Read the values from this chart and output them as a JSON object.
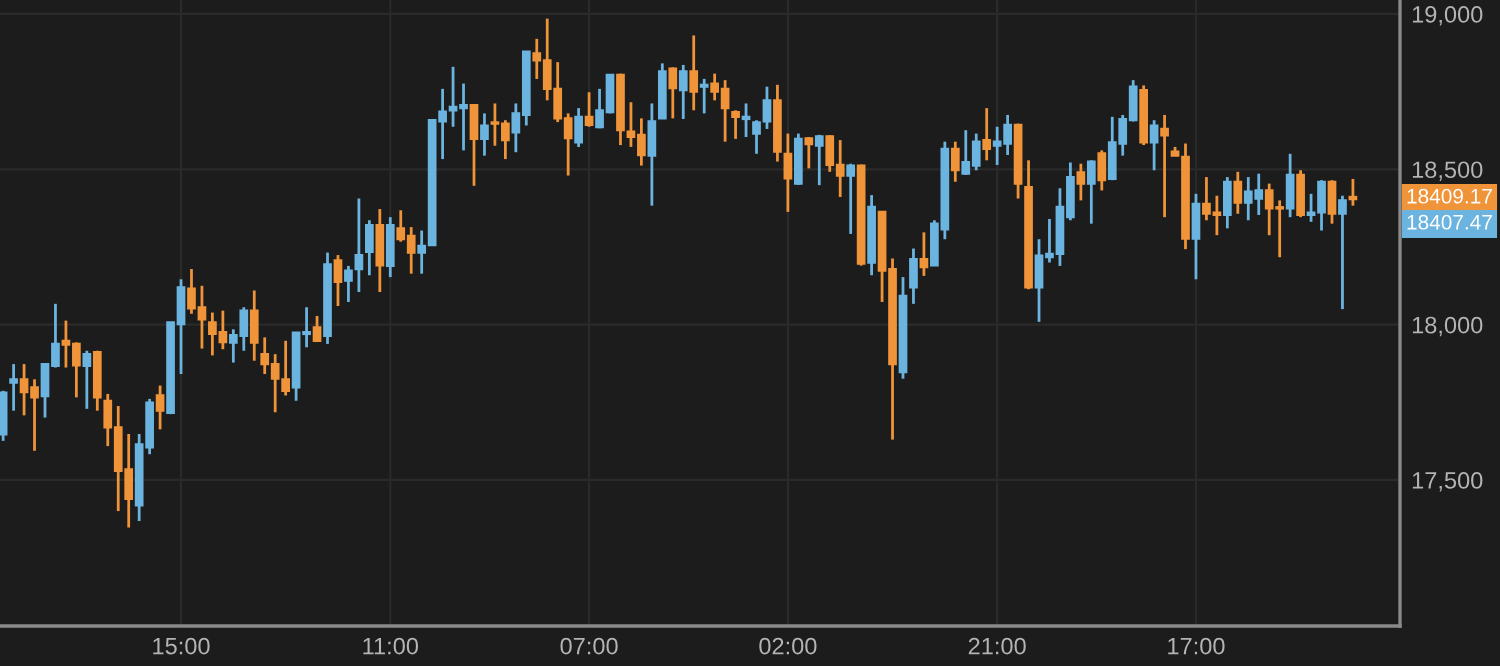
{
  "chart_data": {
    "type": "candlestick",
    "categories": [
      null,
      null,
      null,
      null,
      null,
      null,
      null,
      null,
      null,
      null,
      null,
      null,
      null,
      null,
      null,
      null,
      null,
      "15:00",
      null,
      null,
      null,
      null,
      null,
      null,
      null,
      null,
      null,
      null,
      null,
      null,
      null,
      null,
      null,
      null,
      null,
      null,
      null,
      "11:00",
      null,
      null,
      null,
      null,
      null,
      null,
      null,
      null,
      null,
      null,
      null,
      null,
      null,
      null,
      null,
      null,
      null,
      null,
      "07:00",
      null,
      null,
      null,
      null,
      null,
      null,
      null,
      null,
      null,
      null,
      null,
      null,
      null,
      null,
      null,
      null,
      null,
      null,
      "02:00",
      null,
      null,
      null,
      null,
      null,
      null,
      null,
      null,
      null,
      null,
      null,
      null,
      null,
      null,
      null,
      null,
      null,
      null,
      null,
      "21:00",
      null,
      null,
      null,
      null,
      null,
      null,
      null,
      null,
      null,
      null,
      null,
      null,
      null,
      null,
      null,
      null,
      null,
      null,
      "17:00",
      null,
      null,
      null,
      null,
      null,
      null,
      null,
      null,
      null,
      null,
      null,
      null,
      null,
      null,
      null
    ],
    "ohlc": [
      [
        17647,
        17787,
        17626,
        17781
      ],
      [
        17813,
        17873,
        17723,
        17824
      ],
      [
        17824,
        17873,
        17708,
        17783
      ],
      [
        17798,
        17824,
        17594,
        17766
      ],
      [
        17770,
        17873,
        17701,
        17873
      ],
      [
        17867,
        18067,
        17862,
        17938
      ],
      [
        17948,
        18013,
        17862,
        17936
      ],
      [
        17938,
        17943,
        17766,
        17869
      ],
      [
        17867,
        17916,
        17729,
        17905
      ],
      [
        17912,
        17916,
        17723,
        17766
      ],
      [
        17755,
        17777,
        17609,
        17669
      ],
      [
        17669,
        17738,
        17400,
        17529
      ],
      [
        17534,
        17648,
        17347,
        17439
      ],
      [
        17418,
        17648,
        17368,
        17615
      ],
      [
        17605,
        17761,
        17583,
        17749
      ],
      [
        17772,
        17804,
        17663,
        17723
      ],
      [
        17716,
        18007,
        17712,
        18007
      ],
      [
        18002,
        18146,
        17841,
        18120
      ],
      [
        18116,
        18179,
        18035,
        18052
      ],
      [
        18056,
        18125,
        17923,
        18017
      ],
      [
        18007,
        18039,
        17901,
        17970
      ],
      [
        17976,
        18045,
        17921,
        17944
      ],
      [
        17942,
        17985,
        17878,
        17966
      ],
      [
        17964,
        18056,
        17916,
        18045
      ],
      [
        18045,
        18110,
        17884,
        17942
      ],
      [
        17905,
        17959,
        17841,
        17873
      ],
      [
        17873,
        17905,
        17718,
        17826
      ],
      [
        17824,
        17948,
        17772,
        17787
      ],
      [
        17798,
        17974,
        17755,
        17974
      ],
      [
        17970,
        18056,
        17927,
        17976
      ],
      [
        17991,
        18028,
        17944,
        17948
      ],
      [
        17964,
        18232,
        17938,
        18194
      ],
      [
        18207,
        18224,
        18060,
        18138
      ],
      [
        18142,
        18189,
        18073,
        18174
      ],
      [
        18179,
        18406,
        18105,
        18224
      ],
      [
        18234,
        18336,
        18159,
        18320
      ],
      [
        18320,
        18372,
        18105,
        18191
      ],
      [
        18189,
        18346,
        18153,
        18320
      ],
      [
        18310,
        18368,
        18267,
        18275
      ],
      [
        18286,
        18314,
        18164,
        18232
      ],
      [
        18232,
        18303,
        18164,
        18254
      ],
      [
        18256,
        18658,
        18256,
        18658
      ],
      [
        18654,
        18759,
        18533,
        18686
      ],
      [
        18690,
        18830,
        18637,
        18701
      ],
      [
        18697,
        18776,
        18561,
        18707
      ],
      [
        18707,
        18710,
        18447,
        18598
      ],
      [
        18598,
        18680,
        18544,
        18641
      ],
      [
        18651,
        18712,
        18576,
        18647
      ],
      [
        18647,
        18658,
        18533,
        18594
      ],
      [
        18619,
        18712,
        18555,
        18680
      ],
      [
        18675,
        18879,
        18641,
        18879
      ],
      [
        18873,
        18920,
        18791,
        18851
      ],
      [
        18851,
        18985,
        18722,
        18759
      ],
      [
        18759,
        18845,
        18652,
        18664
      ],
      [
        18664,
        18680,
        18480,
        18600
      ],
      [
        18587,
        18697,
        18572,
        18669
      ],
      [
        18669,
        18748,
        18637,
        18643
      ],
      [
        18636,
        18759,
        18632,
        18690
      ],
      [
        18684,
        18804,
        18680,
        18804
      ],
      [
        18804,
        18808,
        18578,
        18626
      ],
      [
        18621,
        18716,
        18572,
        18604
      ],
      [
        18611,
        18664,
        18512,
        18546
      ],
      [
        18544,
        18712,
        18383,
        18654
      ],
      [
        18664,
        18841,
        18662,
        18815
      ],
      [
        18824,
        18828,
        18664,
        18761
      ],
      [
        18755,
        18836,
        18662,
        18815
      ],
      [
        18815,
        18931,
        18690,
        18750
      ],
      [
        18766,
        18791,
        18680,
        18772
      ],
      [
        18776,
        18808,
        18722,
        18750
      ],
      [
        18759,
        18787,
        18589,
        18697
      ],
      [
        18684,
        18690,
        18598,
        18669
      ],
      [
        18662,
        18712,
        18604,
        18669
      ],
      [
        18615,
        18658,
        18550,
        18651
      ],
      [
        18654,
        18766,
        18630,
        18722
      ],
      [
        18722,
        18772,
        18525,
        18557
      ],
      [
        18550,
        18615,
        18363,
        18471
      ],
      [
        18454,
        18615,
        18450,
        18598
      ],
      [
        18600,
        18604,
        18503,
        18581
      ],
      [
        18576,
        18611,
        18449,
        18606
      ],
      [
        18606,
        18610,
        18492,
        18514
      ],
      [
        18514,
        18594,
        18411,
        18480
      ],
      [
        18480,
        18518,
        18292,
        18512
      ],
      [
        18512,
        18515,
        18190,
        18196
      ],
      [
        18200,
        18417,
        18159,
        18379
      ],
      [
        18363,
        18365,
        18073,
        18174
      ],
      [
        18179,
        18213,
        17630,
        17873
      ],
      [
        17847,
        18153,
        17826,
        18093
      ],
      [
        18120,
        18245,
        18067,
        18211
      ],
      [
        18211,
        18297,
        18157,
        18185
      ],
      [
        18191,
        18336,
        18189,
        18325
      ],
      [
        18307,
        18589,
        18275,
        18566
      ],
      [
        18566,
        18589,
        18460,
        18497
      ],
      [
        18486,
        18626,
        18482,
        18523
      ],
      [
        18512,
        18615,
        18497,
        18589
      ],
      [
        18594,
        18697,
        18529,
        18566
      ],
      [
        18576,
        18637,
        18514,
        18589
      ],
      [
        18583,
        18675,
        18546,
        18643
      ],
      [
        18643,
        18647,
        18406,
        18454
      ],
      [
        18443,
        18529,
        18114,
        18120
      ],
      [
        18120,
        18275,
        18009,
        18222
      ],
      [
        18217,
        18340,
        18200,
        18228
      ],
      [
        18228,
        18439,
        18189,
        18379
      ],
      [
        18346,
        18522,
        18336,
        18475
      ],
      [
        18490,
        18518,
        18400,
        18454
      ],
      [
        18454,
        18529,
        18325,
        18525
      ],
      [
        18551,
        18561,
        18432,
        18465
      ],
      [
        18469,
        18669,
        18465,
        18587
      ],
      [
        18583,
        18675,
        18544,
        18662
      ],
      [
        18658,
        18787,
        18654,
        18766
      ],
      [
        18755,
        18770,
        18578,
        18587
      ],
      [
        18587,
        18658,
        18497,
        18641
      ],
      [
        18630,
        18675,
        18346,
        18609
      ],
      [
        18557,
        18572,
        18544,
        18544
      ],
      [
        18540,
        18583,
        18243,
        18277
      ],
      [
        18277,
        18421,
        18146,
        18389
      ],
      [
        18389,
        18475,
        18336,
        18357
      ],
      [
        18361,
        18415,
        18288,
        18353
      ],
      [
        18353,
        18475,
        18310,
        18460
      ],
      [
        18460,
        18492,
        18357,
        18393
      ],
      [
        18393,
        18475,
        18336,
        18428
      ],
      [
        18406,
        18486,
        18353,
        18432
      ],
      [
        18432,
        18454,
        18288,
        18374
      ],
      [
        18378,
        18400,
        18217,
        18374
      ],
      [
        18374,
        18550,
        18346,
        18482
      ],
      [
        18482,
        18497,
        18346,
        18353
      ],
      [
        18353,
        18421,
        18331,
        18361
      ],
      [
        18361,
        18465,
        18303,
        18460
      ],
      [
        18460,
        18465,
        18325,
        18357
      ],
      [
        18357,
        18415,
        18050,
        18400
      ],
      [
        18411,
        18469,
        18383,
        18404
      ]
    ],
    "colors": [
      "#6cb4e0",
      "#6cb4e0",
      "#f0943a",
      "#f0943a",
      "#6cb4e0",
      "#6cb4e0",
      "#f0943a",
      "#f0943a",
      "#6cb4e0",
      "#f0943a",
      "#f0943a",
      "#f0943a",
      "#f0943a",
      "#6cb4e0",
      "#6cb4e0",
      "#f0943a",
      "#6cb4e0",
      "#6cb4e0",
      "#f0943a",
      "#f0943a",
      "#f0943a",
      "#f0943a",
      "#6cb4e0",
      "#6cb4e0",
      "#f0943a",
      "#f0943a",
      "#f0943a",
      "#f0943a",
      "#6cb4e0",
      "#6cb4e0",
      "#f0943a",
      "#6cb4e0",
      "#f0943a",
      "#6cb4e0",
      "#6cb4e0",
      "#6cb4e0",
      "#f0943a",
      "#6cb4e0",
      "#f0943a",
      "#f0943a",
      "#6cb4e0",
      "#6cb4e0",
      "#6cb4e0",
      "#6cb4e0",
      "#6cb4e0",
      "#f0943a",
      "#6cb4e0",
      "#f0943a",
      "#f0943a",
      "#6cb4e0",
      "#6cb4e0",
      "#f0943a",
      "#f0943a",
      "#f0943a",
      "#f0943a",
      "#6cb4e0",
      "#f0943a",
      "#6cb4e0",
      "#6cb4e0",
      "#f0943a",
      "#f0943a",
      "#f0943a",
      "#6cb4e0",
      "#6cb4e0",
      "#f0943a",
      "#6cb4e0",
      "#f0943a",
      "#6cb4e0",
      "#f0943a",
      "#f0943a",
      "#f0943a",
      "#6cb4e0",
      "#6cb4e0",
      "#6cb4e0",
      "#f0943a",
      "#f0943a",
      "#6cb4e0",
      "#f0943a",
      "#6cb4e0",
      "#f0943a",
      "#f0943a",
      "#6cb4e0",
      "#f0943a",
      "#6cb4e0",
      "#f0943a",
      "#f0943a",
      "#6cb4e0",
      "#6cb4e0",
      "#f0943a",
      "#6cb4e0",
      "#6cb4e0",
      "#f0943a",
      "#6cb4e0",
      "#6cb4e0",
      "#f0943a",
      "#6cb4e0",
      "#6cb4e0",
      "#f0943a",
      "#f0943a",
      "#6cb4e0",
      "#6cb4e0",
      "#6cb4e0",
      "#6cb4e0",
      "#f0943a",
      "#6cb4e0",
      "#f0943a",
      "#6cb4e0",
      "#6cb4e0",
      "#6cb4e0",
      "#f0943a",
      "#6cb4e0",
      "#f0943a",
      "#f0943a",
      "#f0943a",
      "#6cb4e0",
      "#f0943a",
      "#f0943a",
      "#6cb4e0",
      "#f0943a",
      "#6cb4e0",
      "#6cb4e0",
      "#f0943a",
      "#f0943a",
      "#6cb4e0",
      "#f0943a",
      "#6cb4e0",
      "#6cb4e0",
      "#f0943a",
      "#6cb4e0",
      "#f0943a"
    ],
    "ylim": [
      17030,
      19045
    ],
    "yticks": [
      {
        "value": 17500,
        "label": "17,500"
      },
      {
        "value": 18000,
        "label": "18,000"
      },
      {
        "value": 18500,
        "label": "18,500"
      },
      {
        "value": 19000,
        "label": "19,000"
      }
    ],
    "grid": true,
    "annotations": [
      "18409.17",
      "18407.47"
    ]
  }
}
